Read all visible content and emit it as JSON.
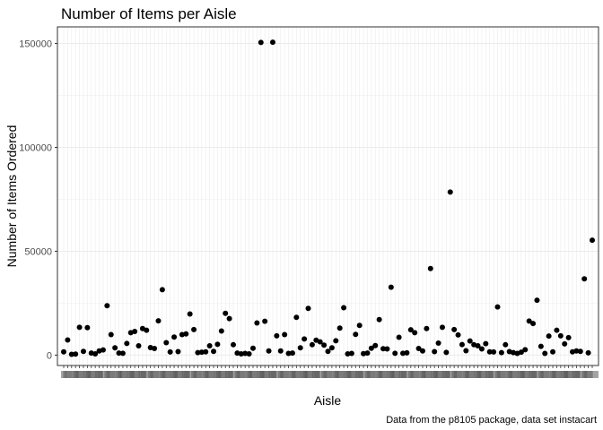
{
  "chart_data": {
    "type": "scatter",
    "title": "Number of Items per Aisle",
    "xlabel": "Aisle",
    "ylabel": "Number of Items Ordered",
    "caption": "Data from the p8105 package, data set instacart",
    "y_ticks": [
      0,
      50000,
      100000,
      150000
    ],
    "y_tick_labels": [
      "0",
      "50000",
      "100000",
      "150000"
    ],
    "ylim": [
      -5000,
      158000
    ],
    "grid": true,
    "legend": "none",
    "point_color": "#000000",
    "category_labels_legible": false,
    "values": [
      1600,
      7300,
      400,
      500,
      13400,
      1800,
      13200,
      1000,
      600,
      2000,
      2500,
      23800,
      9900,
      3500,
      1000,
      900,
      5600,
      10800,
      11400,
      4500,
      12800,
      12000,
      3600,
      3200,
      16500,
      31500,
      6000,
      1500,
      8700,
      1700,
      9900,
      10200,
      19800,
      12300,
      1200,
      1400,
      1600,
      4500,
      1800,
      5200,
      11600,
      20100,
      17600,
      5000,
      1000,
      600,
      800,
      600,
      3300,
      15500,
      150500,
      16300,
      2000,
      150600,
      9300,
      2000,
      9900,
      800,
      1000,
      18200,
      3500,
      7800,
      22500,
      5000,
      7200,
      6400,
      4800,
      1800,
      3500,
      6900,
      13000,
      22800,
      600,
      800,
      10000,
      14300,
      700,
      1000,
      3300,
      4600,
      17100,
      3100,
      3000,
      32700,
      900,
      8600,
      900,
      1100,
      12200,
      10800,
      3200,
      2000,
      12800,
      41700,
      1700,
      5800,
      13400,
      1300,
      78500,
      12300,
      9700,
      5100,
      2100,
      6800,
      5000,
      4500,
      3000,
      5500,
      1600,
      1500,
      23200,
      1200,
      5000,
      1700,
      1200,
      800,
      1400,
      2600,
      16400,
      15200,
      26400,
      4200,
      800,
      9200,
      1600,
      12000,
      9300,
      5400,
      8400,
      1600,
      2000,
      1800,
      36700,
      1100,
      55300
    ]
  }
}
